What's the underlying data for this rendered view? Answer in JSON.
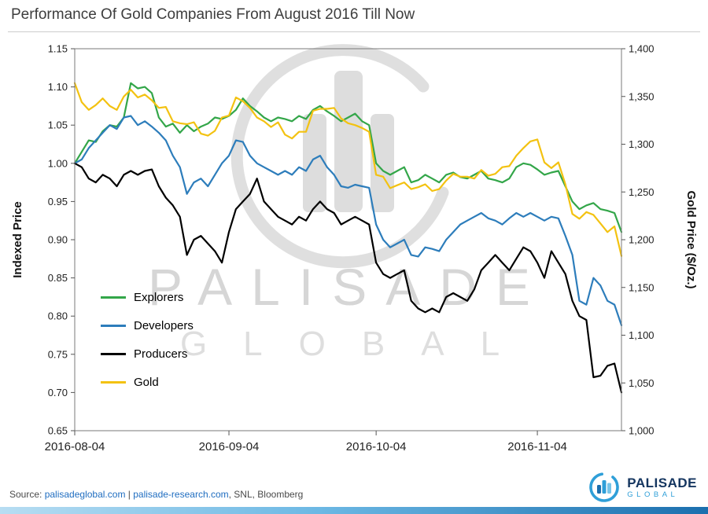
{
  "title": "Performance Of Gold Companies From August 2016 Till Now",
  "left_axis_title": "Indexed Price",
  "right_axis_title": "Gold Price ($/Oz.)",
  "watermark": {
    "line1": "PALISADE",
    "line2": "GLOBAL"
  },
  "footer": {
    "source_prefix": "Source: ",
    "link1": "palisadeglobal.com",
    "separator": " | ",
    "link2": "palisade-research.com",
    "suffix": ", SNL, Bloomberg",
    "logo_name": "PALISADE",
    "logo_sub": "GLOBAL"
  },
  "colors": {
    "explorers_green": "#33a649",
    "developers_blue": "#2d7dbb",
    "producers_black": "#000000",
    "gold_yellow": "#f3c211",
    "link_blue": "#1f6dc0",
    "brand_navy": "#14355f",
    "brand_light_blue": "#2f9fd8"
  },
  "chart_data": {
    "type": "line",
    "title": "Performance Of Gold Companies From August 2016 Till Now",
    "grid": false,
    "legend_position": "inside-left",
    "x_tick_labels": [
      "2016-08-04",
      "2016-09-04",
      "2016-10-04",
      "2016-11-04"
    ],
    "x_tick_indices": [
      0,
      22,
      43,
      66
    ],
    "left_axis": {
      "label": "Indexed Price",
      "min": 0.65,
      "max": 1.15,
      "tick_step": 0.05
    },
    "right_axis": {
      "label": "Gold Price ($/Oz.)",
      "min": 1000,
      "max": 1400,
      "tick_step": 50
    },
    "x_dates": [
      "2016-08-04",
      "2016-08-05",
      "2016-08-08",
      "2016-08-09",
      "2016-08-10",
      "2016-08-11",
      "2016-08-12",
      "2016-08-15",
      "2016-08-16",
      "2016-08-17",
      "2016-08-18",
      "2016-08-19",
      "2016-08-22",
      "2016-08-23",
      "2016-08-24",
      "2016-08-25",
      "2016-08-26",
      "2016-08-29",
      "2016-08-30",
      "2016-08-31",
      "2016-09-01",
      "2016-09-02",
      "2016-09-05",
      "2016-09-06",
      "2016-09-07",
      "2016-09-08",
      "2016-09-09",
      "2016-09-12",
      "2016-09-13",
      "2016-09-14",
      "2016-09-15",
      "2016-09-16",
      "2016-09-19",
      "2016-09-20",
      "2016-09-21",
      "2016-09-22",
      "2016-09-23",
      "2016-09-26",
      "2016-09-27",
      "2016-09-28",
      "2016-09-29",
      "2016-09-30",
      "2016-10-03",
      "2016-10-04",
      "2016-10-05",
      "2016-10-06",
      "2016-10-07",
      "2016-10-10",
      "2016-10-11",
      "2016-10-12",
      "2016-10-13",
      "2016-10-14",
      "2016-10-17",
      "2016-10-18",
      "2016-10-19",
      "2016-10-20",
      "2016-10-21",
      "2016-10-24",
      "2016-10-25",
      "2016-10-26",
      "2016-10-27",
      "2016-10-28",
      "2016-10-31",
      "2016-11-01",
      "2016-11-02",
      "2016-11-03",
      "2016-11-04",
      "2016-11-07",
      "2016-11-08",
      "2016-11-09",
      "2016-11-10",
      "2016-11-11",
      "2016-11-14",
      "2016-11-15",
      "2016-11-16",
      "2016-11-17",
      "2016-11-18",
      "2016-11-21",
      "2016-11-22"
    ],
    "series": [
      {
        "name": "Explorers",
        "color": "#33a649",
        "axis": "left",
        "values": [
          1.0,
          1.015,
          1.03,
          1.028,
          1.042,
          1.05,
          1.048,
          1.06,
          1.105,
          1.098,
          1.1,
          1.092,
          1.06,
          1.048,
          1.052,
          1.04,
          1.05,
          1.042,
          1.048,
          1.052,
          1.06,
          1.058,
          1.062,
          1.07,
          1.085,
          1.075,
          1.068,
          1.06,
          1.055,
          1.06,
          1.058,
          1.055,
          1.062,
          1.058,
          1.07,
          1.075,
          1.068,
          1.062,
          1.055,
          1.06,
          1.065,
          1.055,
          1.05,
          1.0,
          0.99,
          0.985,
          0.99,
          0.995,
          0.975,
          0.978,
          0.985,
          0.98,
          0.975,
          0.985,
          0.988,
          0.982,
          0.98,
          0.985,
          0.99,
          0.98,
          0.978,
          0.975,
          0.98,
          0.995,
          1.0,
          0.998,
          0.992,
          0.985,
          0.988,
          0.99,
          0.97,
          0.95,
          0.94,
          0.945,
          0.948,
          0.94,
          0.938,
          0.935,
          0.91
        ]
      },
      {
        "name": "Developers",
        "color": "#2d7dbb",
        "axis": "left",
        "values": [
          1.0,
          1.005,
          1.02,
          1.03,
          1.04,
          1.05,
          1.045,
          1.06,
          1.062,
          1.05,
          1.055,
          1.048,
          1.04,
          1.03,
          1.01,
          0.995,
          0.96,
          0.975,
          0.98,
          0.97,
          0.985,
          1.0,
          1.01,
          1.03,
          1.028,
          1.01,
          1.0,
          0.995,
          0.99,
          0.985,
          0.99,
          0.985,
          0.995,
          0.99,
          1.005,
          1.01,
          0.995,
          0.985,
          0.97,
          0.968,
          0.972,
          0.97,
          0.968,
          0.92,
          0.9,
          0.89,
          0.895,
          0.9,
          0.88,
          0.878,
          0.89,
          0.888,
          0.885,
          0.9,
          0.91,
          0.92,
          0.925,
          0.93,
          0.935,
          0.928,
          0.925,
          0.92,
          0.928,
          0.935,
          0.93,
          0.935,
          0.93,
          0.925,
          0.93,
          0.928,
          0.905,
          0.88,
          0.82,
          0.815,
          0.85,
          0.84,
          0.82,
          0.815,
          0.788
        ]
      },
      {
        "name": "Producers",
        "color": "#000000",
        "axis": "left",
        "values": [
          1.0,
          0.995,
          0.98,
          0.975,
          0.985,
          0.98,
          0.97,
          0.985,
          0.99,
          0.985,
          0.99,
          0.992,
          0.97,
          0.955,
          0.945,
          0.93,
          0.88,
          0.9,
          0.905,
          0.895,
          0.885,
          0.87,
          0.91,
          0.94,
          0.95,
          0.96,
          0.98,
          0.95,
          0.94,
          0.93,
          0.925,
          0.92,
          0.93,
          0.925,
          0.94,
          0.95,
          0.94,
          0.935,
          0.92,
          0.925,
          0.93,
          0.925,
          0.92,
          0.87,
          0.855,
          0.85,
          0.855,
          0.86,
          0.82,
          0.81,
          0.805,
          0.81,
          0.805,
          0.825,
          0.83,
          0.825,
          0.82,
          0.835,
          0.86,
          0.87,
          0.88,
          0.87,
          0.86,
          0.875,
          0.89,
          0.885,
          0.87,
          0.85,
          0.885,
          0.87,
          0.855,
          0.82,
          0.8,
          0.795,
          0.72,
          0.722,
          0.735,
          0.738,
          0.7
        ]
      },
      {
        "name": "Gold",
        "color": "#f3c211",
        "axis": "right",
        "values": [
          1364,
          1344,
          1336,
          1341,
          1348,
          1340,
          1336,
          1350,
          1357,
          1349,
          1352,
          1346,
          1338,
          1339,
          1324,
          1322,
          1321,
          1323,
          1311,
          1309,
          1314,
          1328,
          1330,
          1349,
          1345,
          1338,
          1328,
          1324,
          1318,
          1323,
          1310,
          1306,
          1313,
          1313,
          1335,
          1337,
          1337,
          1338,
          1327,
          1322,
          1320,
          1317,
          1313,
          1268,
          1266,
          1254,
          1257,
          1260,
          1253,
          1255,
          1258,
          1251,
          1253,
          1262,
          1269,
          1266,
          1266,
          1264,
          1273,
          1267,
          1269,
          1276,
          1277,
          1288,
          1296,
          1303,
          1305,
          1281,
          1275,
          1281,
          1258,
          1227,
          1222,
          1229,
          1226,
          1217,
          1208,
          1214,
          1183
        ]
      }
    ]
  }
}
